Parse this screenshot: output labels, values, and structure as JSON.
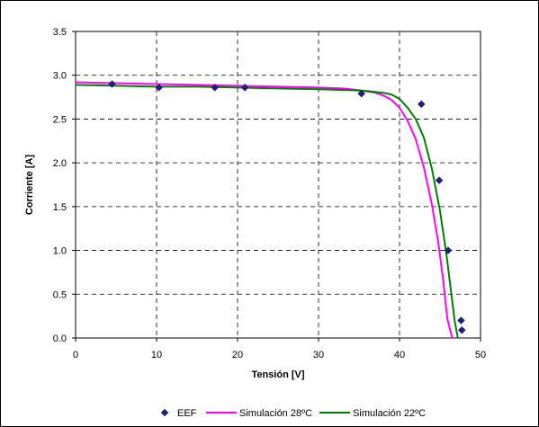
{
  "chart_data": {
    "type": "line",
    "title": "",
    "xlabel": "Tensión [V]",
    "ylabel": "Corriente [A]",
    "xlim": [
      0,
      50
    ],
    "ylim": [
      0,
      3.5
    ],
    "xticks": [
      "0",
      "10",
      "20",
      "30",
      "40",
      "50"
    ],
    "yticks": [
      "0.0",
      "0.5",
      "1.0",
      "1.5",
      "2.0",
      "2.5",
      "3.0",
      "3.5"
    ],
    "grid": true,
    "legend_position": "bottom",
    "series": [
      {
        "name": "EEF",
        "kind": "scatter",
        "color": "#1f1f7a",
        "points": [
          [
            4.5,
            2.9
          ],
          [
            10.3,
            2.86
          ],
          [
            17.2,
            2.86
          ],
          [
            20.9,
            2.86
          ],
          [
            35.3,
            2.79
          ],
          [
            42.7,
            2.67
          ],
          [
            44.9,
            1.8
          ],
          [
            46.0,
            1.0
          ],
          [
            47.6,
            0.2
          ],
          [
            47.7,
            0.09
          ]
        ]
      },
      {
        "name": "Simulación 28ºC",
        "kind": "line",
        "color": "#ff00ff",
        "points": [
          [
            0,
            2.92
          ],
          [
            5,
            2.91
          ],
          [
            10,
            2.9
          ],
          [
            15,
            2.89
          ],
          [
            20,
            2.88
          ],
          [
            25,
            2.87
          ],
          [
            30,
            2.86
          ],
          [
            33,
            2.85
          ],
          [
            35,
            2.83
          ],
          [
            37,
            2.8
          ],
          [
            38,
            2.77
          ],
          [
            39,
            2.72
          ],
          [
            40,
            2.63
          ],
          [
            41,
            2.48
          ],
          [
            42,
            2.27
          ],
          [
            43,
            1.95
          ],
          [
            44,
            1.52
          ],
          [
            44.8,
            1.08
          ],
          [
            45.4,
            0.65
          ],
          [
            45.9,
            0.22
          ],
          [
            46.5,
            0.0
          ]
        ]
      },
      {
        "name": "Simulación 22ºC",
        "kind": "line",
        "color": "#008000",
        "points": [
          [
            0,
            2.89
          ],
          [
            5,
            2.88
          ],
          [
            10,
            2.87
          ],
          [
            15,
            2.87
          ],
          [
            20,
            2.86
          ],
          [
            25,
            2.85
          ],
          [
            30,
            2.84
          ],
          [
            34,
            2.83
          ],
          [
            36,
            2.82
          ],
          [
            38,
            2.8
          ],
          [
            39,
            2.78
          ],
          [
            40,
            2.73
          ],
          [
            41,
            2.63
          ],
          [
            42,
            2.5
          ],
          [
            43,
            2.29
          ],
          [
            44,
            1.93
          ],
          [
            45,
            1.45
          ],
          [
            45.8,
            0.95
          ],
          [
            46.4,
            0.5
          ],
          [
            46.8,
            0.2
          ],
          [
            47.2,
            0.0
          ]
        ]
      }
    ]
  }
}
